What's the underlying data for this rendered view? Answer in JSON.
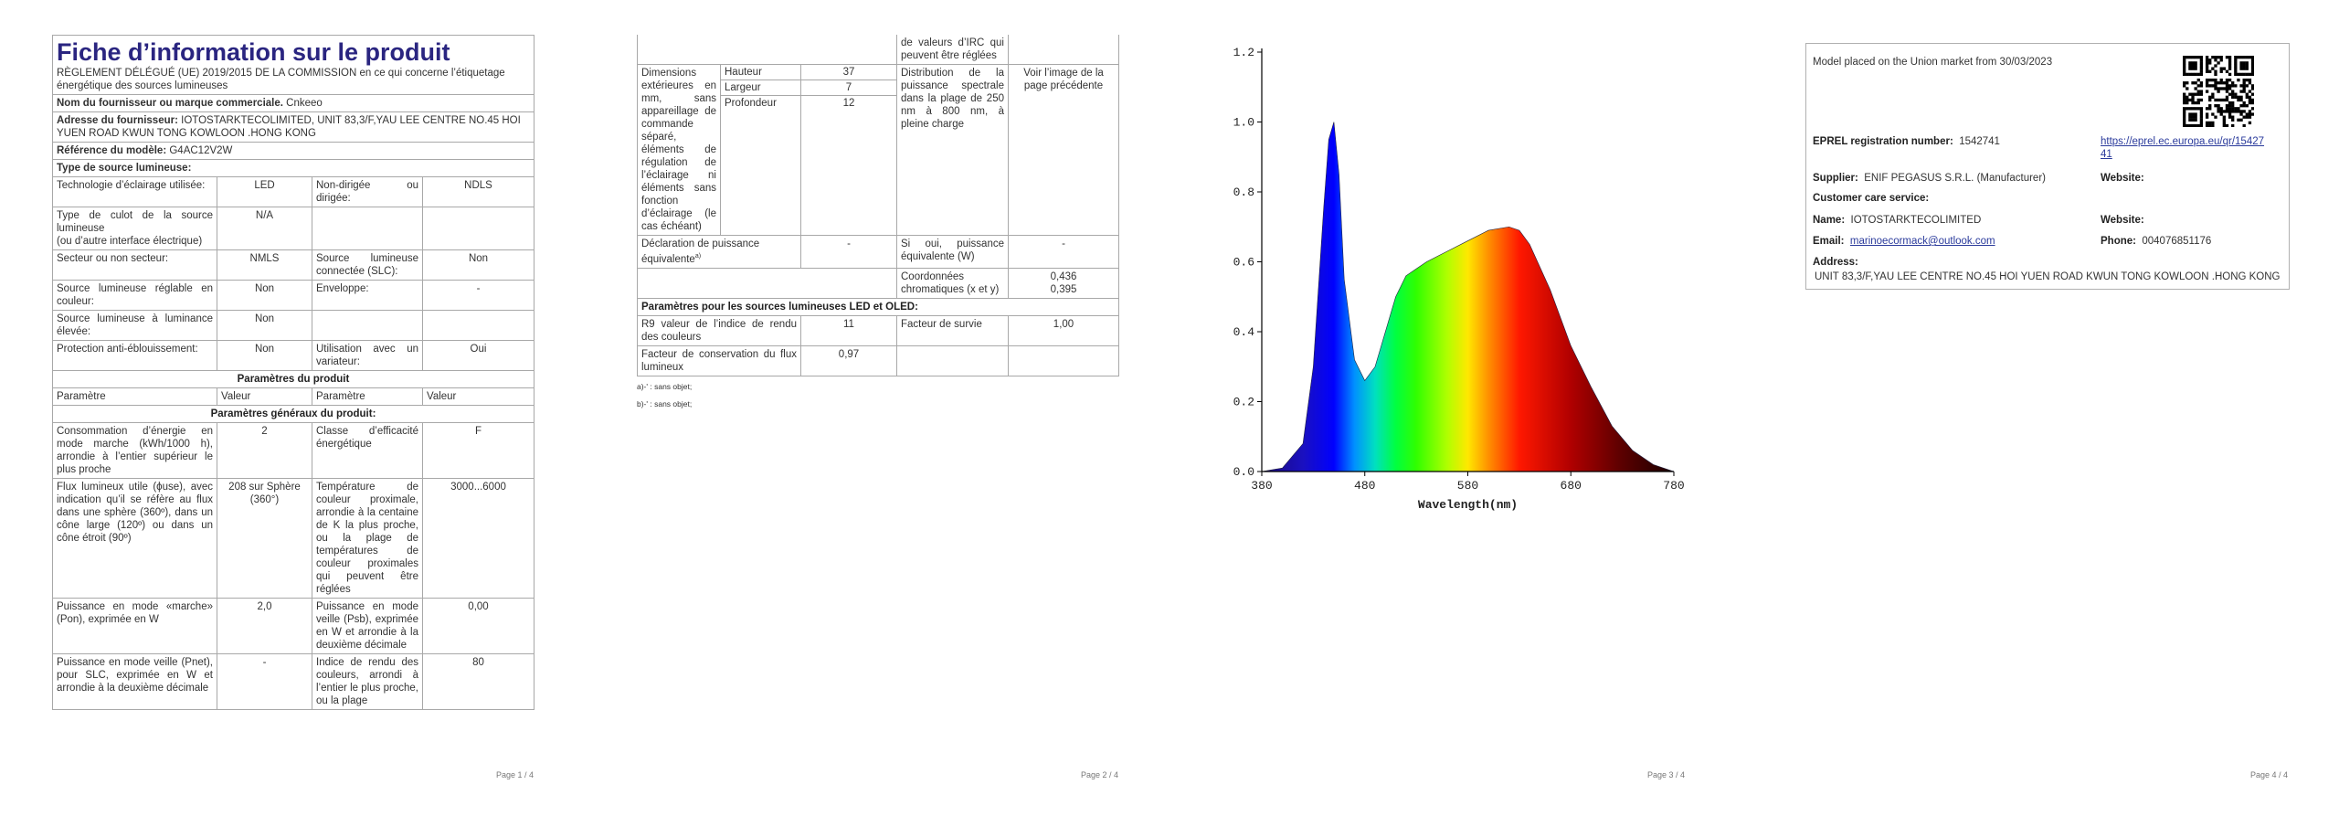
{
  "page1": {
    "title": "Fiche d’information sur le produit",
    "regulation": "RÈGLEMENT DÉLÉGUÉ (UE) 2019/2015 DE LA COMMISSION en ce qui concerne l’étiquetage énergétique des sources lumineuses",
    "supplier_label": "Nom du fournisseur ou marque commerciale.",
    "supplier_value": "Cnkeeo",
    "address_label": "Adresse du fournisseur:",
    "address_value": "IOTOSTARKTECOLIMITED, UNIT 83,3/F,YAU LEE CENTRE NO.45 HOI YUEN ROAD KWUN TONG KOWLOON .HONG KONG",
    "model_label": "Référence du modèle:",
    "model_value": "G4AC12V2W",
    "type_heading": "Type de source lumineuse:",
    "type_rows": [
      [
        "Technologie d’éclairage utilisée:",
        "LED",
        "Non-dirigée ou dirigée:",
        "NDLS"
      ],
      [
        "Type de culot de la source lumineuse\n(ou d’autre interface électrique)",
        "N/A"
      ],
      [
        "Secteur ou non secteur:",
        "NMLS",
        "Source lumineuse connectée (SLC):",
        "Non"
      ],
      [
        "Source lumineuse réglable en couleur:",
        "Non",
        "Enveloppe:",
        "-"
      ],
      [
        "Source lumineuse à luminance élevée:",
        "Non"
      ],
      [
        "Protection anti-éblouissement:",
        "Non",
        "Utilisation avec un variateur:",
        "Oui"
      ]
    ],
    "params_heading": "Paramètres du produit",
    "params_header": [
      "Paramètre",
      "Valeur",
      "Paramètre",
      "Valeur"
    ],
    "general_heading": "Paramètres généraux du produit:",
    "general_rows": [
      [
        "Consommation d’énergie en mode marche (kWh/1000 h), arrondie à l’entier supérieur le plus proche",
        "2",
        "Classe d’efficacité énergétique",
        "F"
      ],
      [
        "Flux lumineux utile (ϕuse), avec indication qu’il se réfère au flux dans une sphère (360º), dans un cône large (120º) ou dans un cône étroit (90º)",
        "208 sur Sphère (360°)",
        "Température de couleur proximale, arrondie à la centaine de K la plus proche, ou la plage de températures de couleur proximales qui peuvent être réglées",
        "3000...6000"
      ],
      [
        "Puissance en mode «marche» (Pon), exprimée en W",
        "2,0",
        "Puissance en mode veille (Psb), exprimée en W et arrondie à la deuxième décimale",
        "0,00"
      ],
      [
        "Puissance en mode veille (Pnet), pour SLC, exprimée en W et arrondie à la deuxième décimale",
        "-",
        "Indice de rendu des couleurs, arrondi à l’entier le plus proche, ou la plage",
        "80"
      ]
    ],
    "page_number": "Page 1 / 4"
  },
  "page2": {
    "continuation": "de valeurs d’IRC qui peuvent être réglées",
    "dimensions_label": "Dimensions extérieures en mm, sans appareillage de commande séparé, éléments de régulation de l’éclairage ni éléments sans fonction d’éclairage (le cas échéant)",
    "dimensions": [
      [
        "Hauteur",
        "37"
      ],
      [
        "Largeur",
        "7"
      ],
      [
        "Profondeur",
        "12"
      ]
    ],
    "spectral_label": "Distribution de la puissance spectrale dans la plage de 250 nm à 800 nm, à pleine charge",
    "spectral_value": "Voir l’image de la page précédente",
    "equivalent": {
      "label": "Déclaration de puissance équivalente",
      "note": "a)",
      "value": "-",
      "label2": "Si oui, puissance équivalente (W)",
      "value2": "-"
    },
    "chromaticity": {
      "label": "Coordonnées chromatiques (x et y)",
      "value": "0,436\n0,395"
    },
    "led_heading": "Paramètres pour les sources lumineuses LED et OLED:",
    "led_rows": [
      [
        "R9 valeur de l’indice de rendu des couleurs",
        "11",
        "Facteur de survie",
        "1,00"
      ],
      [
        "Facteur de conservation du flux lumineux",
        "0,97"
      ]
    ],
    "footnotes": [
      "a)-' : sans objet;",
      "b)-' : sans objet;"
    ],
    "page_number": "Page 2 / 4"
  },
  "page3": {
    "page_number": "Page 3 / 4"
  },
  "chart_data": {
    "type": "area",
    "x_label": "Wavelength(nm)",
    "x": [
      380,
      400,
      420,
      430,
      440,
      445,
      450,
      455,
      460,
      470,
      480,
      490,
      500,
      510,
      520,
      530,
      540,
      560,
      580,
      600,
      620,
      630,
      640,
      660,
      680,
      700,
      720,
      740,
      760,
      780
    ],
    "values": [
      0,
      0.01,
      0.08,
      0.3,
      0.75,
      0.95,
      1.0,
      0.85,
      0.55,
      0.32,
      0.26,
      0.3,
      0.4,
      0.5,
      0.56,
      0.58,
      0.6,
      0.63,
      0.66,
      0.69,
      0.7,
      0.69,
      0.65,
      0.52,
      0.36,
      0.24,
      0.13,
      0.06,
      0.02,
      0
    ],
    "xlim": [
      380,
      780
    ],
    "ylim": [
      0,
      1.2
    ],
    "xticks": [
      380,
      480,
      580,
      680,
      780
    ],
    "yticks": [
      {
        "value": 0,
        "label": "0.0"
      },
      0.2,
      0.4,
      0.6,
      0.8,
      {
        "value": 1,
        "label": "1.0"
      },
      1.2
    ]
  },
  "page4": {
    "placed": "Model placed on the Union market from 30/03/2023",
    "eprel_label": "EPREL registration number:",
    "eprel_value": "1542741",
    "eprel_link": "https://eprel.ec.europa.eu/qr/1542741",
    "supplier_label": "Supplier:",
    "supplier_value": "ENIF PEGASUS S.R.L. (Manufacturer)",
    "website_label": "Website:",
    "care_label": "Customer care service:",
    "name_label": "Name:",
    "name_value": "IOTOSTARKTECOLIMITED",
    "website2_label": "Website:",
    "email_label": "Email:",
    "email_value": "marinoecormack@outlook.com",
    "phone_label": "Phone:",
    "phone_value": "004076851176",
    "address_label": "Address:",
    "address_value": "UNIT 83,3/F,YAU LEE CENTRE NO.45 HOI YUEN ROAD KWUN TONG KOWLOON .HONG KONG",
    "page_number": "Page 4 / 4"
  }
}
